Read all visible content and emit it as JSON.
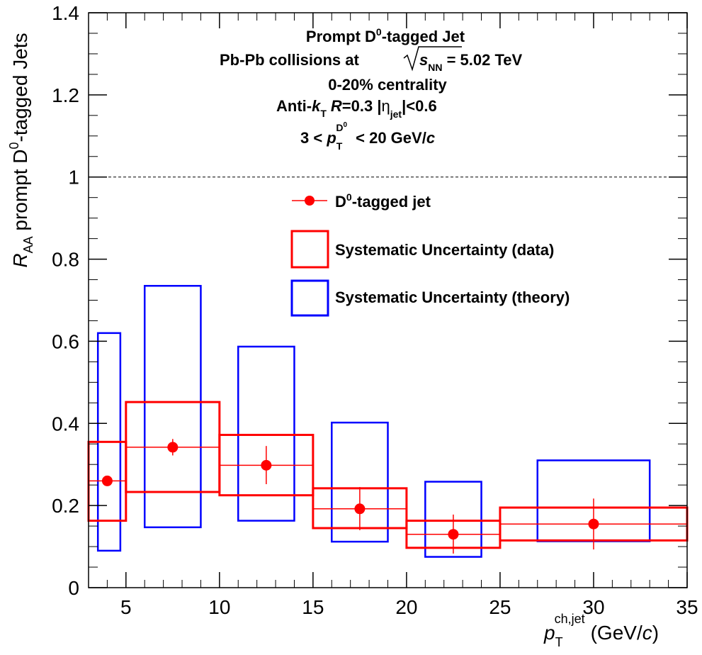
{
  "chart_data": {
    "type": "scatter",
    "xlim": [
      3,
      35
    ],
    "ylim": [
      0,
      1.4
    ],
    "x_ticks": [
      "5",
      "10",
      "15",
      "20",
      "25",
      "30",
      "35"
    ],
    "x_tick_values": [
      5,
      10,
      15,
      20,
      25,
      30,
      35
    ],
    "y_ticks": [
      "0",
      "0.2",
      "0.4",
      "0.6",
      "0.8",
      "1",
      "1.2",
      "1.4"
    ],
    "y_tick_values": [
      0,
      0.2,
      0.4,
      0.6,
      0.8,
      1.0,
      1.2,
      1.4
    ],
    "xlabel": {
      "p": "p",
      "sub": "T",
      "sup": "ch,jet",
      "units": "(GeV/",
      "c": "c",
      "close": ")"
    },
    "ylabel": {
      "r": "R",
      "sub": "AA",
      "pre": " prompt D",
      "sup": "0",
      "post": "-tagged Jets"
    },
    "reference_line_y": 1.0,
    "annotations": {
      "line1_a": "Prompt D",
      "line1_sup": "0",
      "line1_b": "-tagged Jet",
      "line2_a": "Pb-Pb collisions at ",
      "line2_s": "s",
      "line2_sub": "NN",
      "line2_b": " = 5.02 TeV",
      "line3": "0-20% centrality",
      "line4_a": "Anti-",
      "line4_k": "k",
      "line4_ksub": "T",
      "line4_r": "R",
      "line4_b": "=0.3 |",
      "line4_eta": "η",
      "line4_etasub": "jet",
      "line4_c": "|<0.6",
      "line5_a": "3 < ",
      "line5_p": "p",
      "line5_sub": "T",
      "line5_sup": "D",
      "line5_supsup": "0",
      "line5_b": " < 20 GeV/",
      "line5_c": "c"
    },
    "legend": {
      "placement": "top-right",
      "entries": [
        {
          "label_a": "D",
          "label_sup": "0",
          "label_b": "-tagged jet",
          "style": "marker",
          "color": "#ff0000"
        },
        {
          "label": "Systematic Uncertainty (data)",
          "style": "box",
          "color": "#ff0000"
        },
        {
          "label": "Systematic Uncertainty (theory)",
          "style": "box",
          "color": "#0000ff"
        }
      ]
    },
    "series": [
      {
        "name": "D0-tagged jet",
        "color": "#ff0000",
        "points": [
          {
            "x": 4,
            "y": 0.26,
            "xlo": 3,
            "xhi": 5,
            "ylo": 0.25,
            "yhi": 0.27
          },
          {
            "x": 7.5,
            "y": 0.342,
            "xlo": 5,
            "xhi": 10,
            "ylo": 0.322,
            "yhi": 0.362
          },
          {
            "x": 12.5,
            "y": 0.298,
            "xlo": 10,
            "xhi": 15,
            "ylo": 0.252,
            "yhi": 0.345
          },
          {
            "x": 17.5,
            "y": 0.192,
            "xlo": 15,
            "xhi": 20,
            "ylo": 0.14,
            "yhi": 0.245
          },
          {
            "x": 22.5,
            "y": 0.13,
            "xlo": 20,
            "xhi": 25,
            "ylo": 0.083,
            "yhi": 0.178
          },
          {
            "x": 30,
            "y": 0.155,
            "xlo": 25,
            "xhi": 35,
            "ylo": 0.093,
            "yhi": 0.217
          }
        ]
      }
    ],
    "systematics_data": [
      {
        "xlo": 3,
        "xhi": 5,
        "ylo": 0.163,
        "yhi": 0.355
      },
      {
        "xlo": 5,
        "xhi": 10,
        "ylo": 0.233,
        "yhi": 0.452
      },
      {
        "xlo": 10,
        "xhi": 15,
        "ylo": 0.225,
        "yhi": 0.372
      },
      {
        "xlo": 15,
        "xhi": 20,
        "ylo": 0.145,
        "yhi": 0.242
      },
      {
        "xlo": 20,
        "xhi": 25,
        "ylo": 0.097,
        "yhi": 0.163
      },
      {
        "xlo": 25,
        "xhi": 35,
        "ylo": 0.115,
        "yhi": 0.195
      }
    ],
    "systematics_theory": [
      {
        "xlo": 3.5,
        "xhi": 4.7,
        "ylo": 0.09,
        "yhi": 0.62
      },
      {
        "xlo": 6,
        "xhi": 9,
        "ylo": 0.147,
        "yhi": 0.735
      },
      {
        "xlo": 11,
        "xhi": 14,
        "ylo": 0.163,
        "yhi": 0.587
      },
      {
        "xlo": 16,
        "xhi": 19,
        "ylo": 0.112,
        "yhi": 0.402
      },
      {
        "xlo": 21,
        "xhi": 24,
        "ylo": 0.075,
        "yhi": 0.258
      },
      {
        "xlo": 27,
        "xhi": 33,
        "ylo": 0.113,
        "yhi": 0.31
      }
    ]
  }
}
